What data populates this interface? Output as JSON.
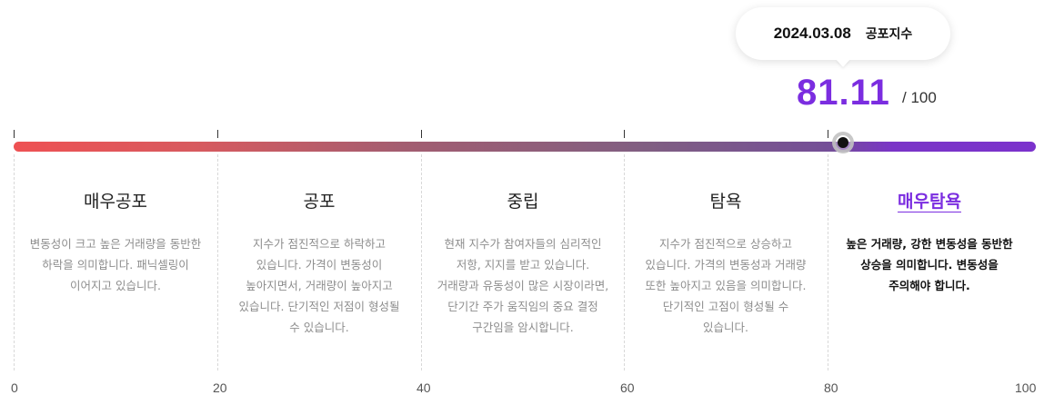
{
  "tooltip": {
    "date": "2024.03.08",
    "label": "공포지수"
  },
  "score": {
    "value": "81.11",
    "max_text": "/ 100",
    "fraction": 0.8111,
    "color": "#7b2de0"
  },
  "sections": [
    {
      "title": "매우공포",
      "desc": "변동성이 크고 높은 거래량을 동반한 하락을 의미합니다. 패닉셀링이 이어지고 있습니다.",
      "active": false
    },
    {
      "title": "공포",
      "desc": "지수가 점진적으로 하락하고 있습니다. 가격이 변동성이 높아지면서, 거래량이 높아지고 있습니다. 단기적인 저점이 형성될 수 있습니다.",
      "active": false
    },
    {
      "title": "중립",
      "desc": "현재 지수가 참여자들의 심리적인 저항, 지지를 받고 있습니다. 거래량과 유동성이 많은 시장이라면, 단기간 주가 움직임의 중요 결정 구간임을 암시합니다.",
      "active": false
    },
    {
      "title": "탐욕",
      "desc": "지수가 점진적으로 상승하고 있습니다. 가격의 변동성과 거래량 또한 높아지고 있음을 의미합니다. 단기적인 고점이 형성될 수 있습니다.",
      "active": false
    },
    {
      "title": "매우탐욕",
      "desc": "높은 거래량, 강한 변동성을 동반한 상승을 의미합니다. 변동성을 주의해야 합니다.",
      "active": true
    }
  ],
  "axis_labels": [
    "0",
    "20",
    "40",
    "60",
    "80",
    "100"
  ],
  "colors": {
    "gradient_start": "#ee5153",
    "gradient_end": "#7b32cc",
    "active_accent": "#7b2de0"
  }
}
